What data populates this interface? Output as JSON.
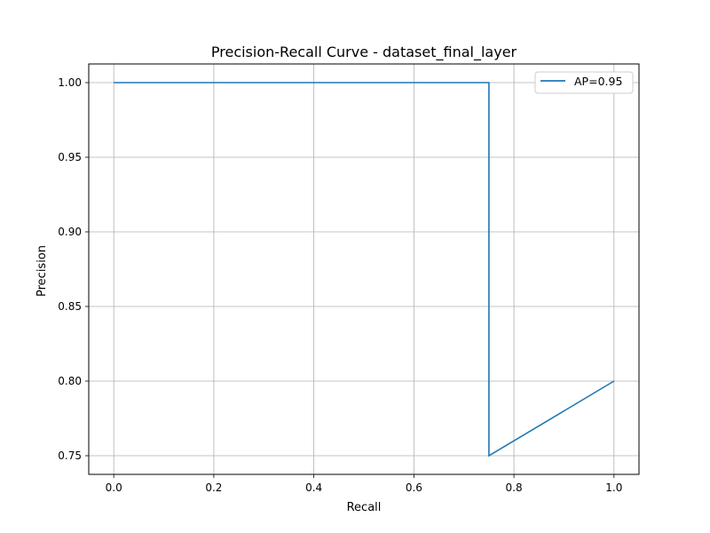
{
  "chart_data": {
    "type": "line",
    "title": "Precision-Recall Curve - dataset_final_layer",
    "xlabel": "Recall",
    "ylabel": "Precision",
    "xlim": [
      -0.05,
      1.05
    ],
    "ylim": [
      0.7375,
      1.0125
    ],
    "xticks": [
      0.0,
      0.2,
      0.4,
      0.6,
      0.8,
      1.0
    ],
    "xtick_labels": [
      "0.0",
      "0.2",
      "0.4",
      "0.6",
      "0.8",
      "1.0"
    ],
    "yticks": [
      0.75,
      0.8,
      0.85,
      0.9,
      0.95,
      1.0
    ],
    "ytick_labels": [
      "0.75",
      "0.80",
      "0.85",
      "0.90",
      "0.95",
      "1.00"
    ],
    "grid": true,
    "legend_position": "top-right",
    "series": [
      {
        "name": "AP=0.95",
        "color": "#1f77b4",
        "x": [
          0.0,
          0.75,
          0.75,
          1.0
        ],
        "y": [
          1.0,
          1.0,
          0.75,
          0.8
        ]
      }
    ]
  }
}
